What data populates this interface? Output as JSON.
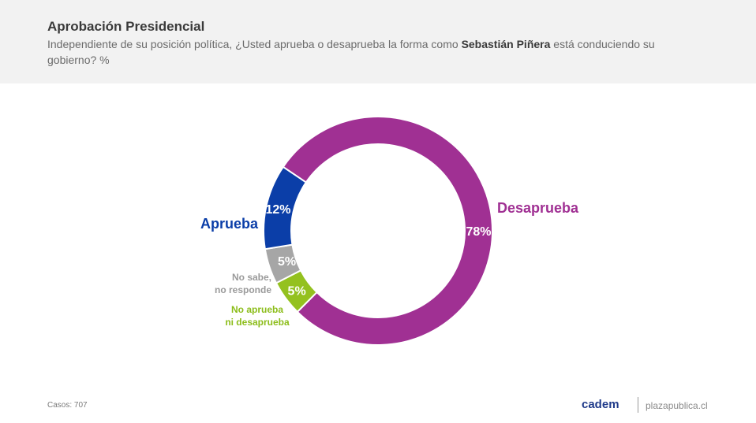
{
  "header": {
    "title": "Aprobación Presidencial",
    "subtitle_pre": "Independiente de su posición política, ¿Usted aprueba o desaprueba la forma como ",
    "subtitle_bold": "Sebastián Piñera",
    "subtitle_post": " está conduciendo su gobierno? %"
  },
  "chart_data": {
    "type": "pie",
    "variant": "donut",
    "series": [
      {
        "name": "Desaprueba",
        "value": 78,
        "label": "78%",
        "color": "#a03093"
      },
      {
        "name": "No aprueba ni desaprueba",
        "value": 5,
        "label": "5%",
        "color": "#94c11f"
      },
      {
        "name": "No sabe, no responde",
        "value": 5,
        "label": "5%",
        "color": "#a6a6a6"
      },
      {
        "name": "Aprueba",
        "value": 12,
        "label": "12%",
        "color": "#0b3ea8"
      }
    ]
  },
  "labels": {
    "desaprueba": "Desaprueba",
    "aprueba": "Aprueba",
    "nsnr_line1": "No sabe,",
    "nsnr_line2": "no responde",
    "nand_line1": "No aprueba",
    "nand_line2": "ni desaprueba"
  },
  "footer": {
    "cases": "Casos: 707",
    "logo": "cadem",
    "site": "plazapublica.cl"
  }
}
